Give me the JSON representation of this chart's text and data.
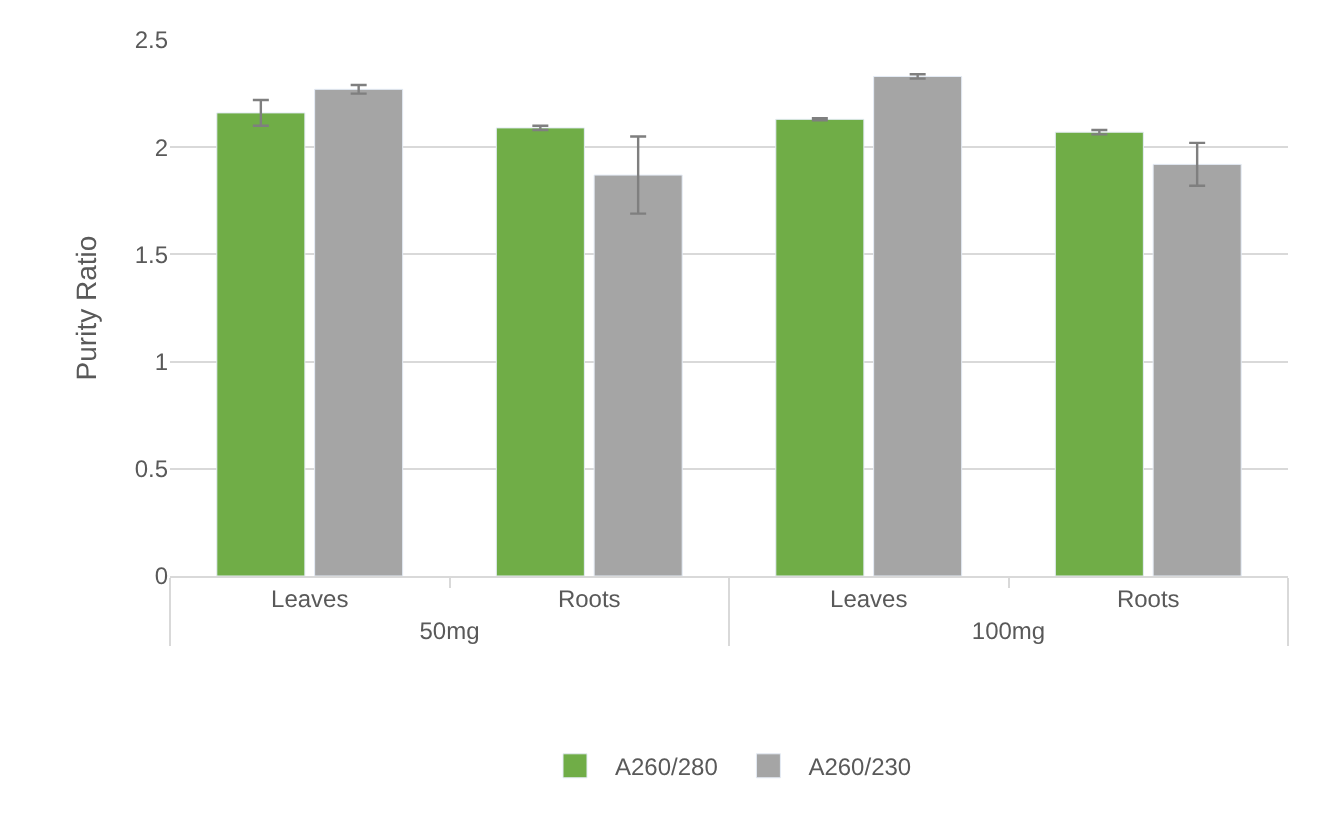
{
  "chart_data": {
    "type": "bar",
    "ylabel": "Purity Ratio",
    "categories": [
      "Leaves",
      "Roots",
      "Leaves",
      "Roots"
    ],
    "annotations": [
      "50mg",
      "100mg"
    ],
    "series": [
      {
        "name": "A260/280",
        "color": "#70ad47",
        "values": [
          2.16,
          2.09,
          2.13,
          2.07
        ],
        "errors": [
          0.06,
          0.01,
          0.005,
          0.01
        ]
      },
      {
        "name": "A260/230",
        "color": "#a5a5a5",
        "values": [
          2.27,
          1.87,
          2.33,
          1.92
        ],
        "errors": [
          0.02,
          0.18,
          0.01,
          0.1
        ]
      }
    ],
    "ylim": [
      0,
      2.5
    ],
    "yticks": [
      0,
      0.5,
      1,
      1.5,
      2,
      2.5
    ],
    "grid": "y",
    "legend": "bottom"
  }
}
